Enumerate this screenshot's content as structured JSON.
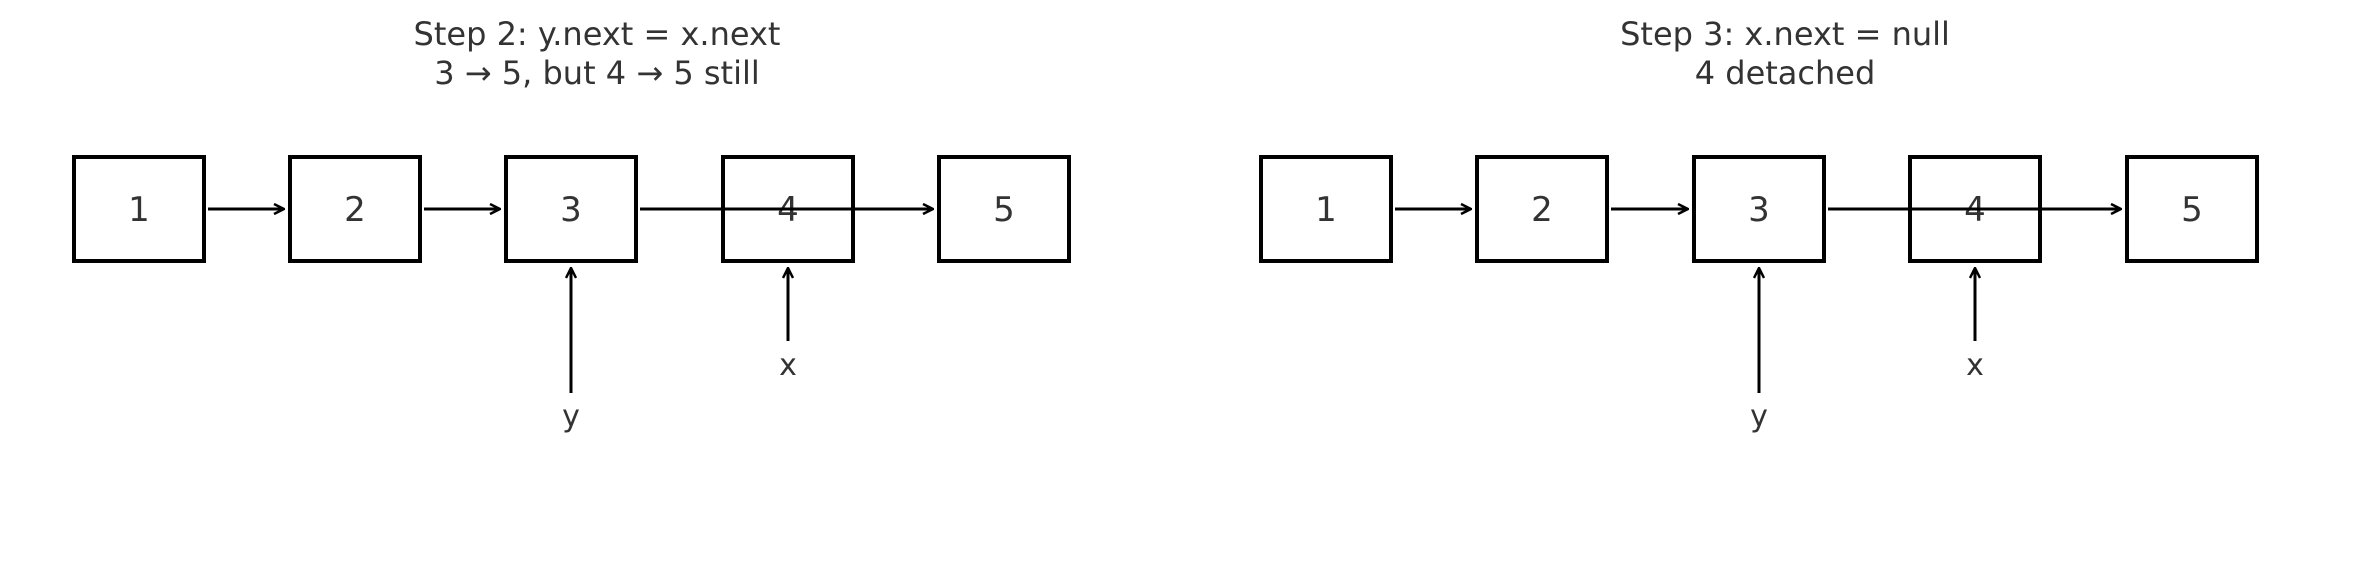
{
  "panels": [
    {
      "title_lines": [
        "Step 2: y.next = x.next",
        "3 → 5, but 4 → 5 still"
      ],
      "nodes": [
        "1",
        "2",
        "3",
        "4",
        "5"
      ],
      "pointers": [
        {
          "label": "y",
          "target_node": "3"
        },
        {
          "label": "x",
          "target_node": "4"
        }
      ]
    },
    {
      "title_lines": [
        "Step 3: x.next = null",
        "4 detached"
      ],
      "nodes": [
        "1",
        "2",
        "3",
        "4",
        "5"
      ],
      "pointers": [
        {
          "label": "y",
          "target_node": "3"
        },
        {
          "label": "x",
          "target_node": "4"
        }
      ]
    }
  ]
}
